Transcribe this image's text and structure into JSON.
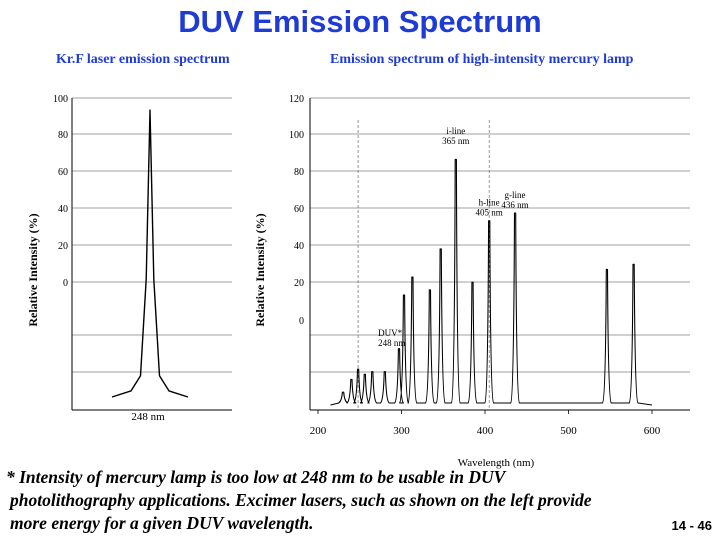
{
  "slide": {
    "title": "DUV Emission Spectrum",
    "left_subtitle": "Kr.F laser emission spectrum",
    "right_subtitle": "Emission spectrum of high-intensity mercury lamp",
    "footnote_lines": [
      "* Intensity of mercury lamp is too low at 248 nm to be usable in DUV",
      "photolithography applications. Excimer lasers, such as shown on the left provide",
      "more energy for a given DUV wavelength."
    ],
    "page_number": "14 - 46",
    "colors": {
      "title": "#1f3bd6",
      "text": "#000000",
      "dashed": "#555555"
    }
  },
  "chart_data": [
    {
      "type": "line",
      "title": "Kr.F laser emission spectrum",
      "ylabel": "Relative Intensity (%)",
      "ytick_labels": [
        "100",
        "80",
        "60",
        "40",
        "20",
        "0"
      ],
      "xtick_labels": [
        "248 nm"
      ],
      "ylim": [
        0,
        100
      ],
      "grid": true,
      "series": [
        {
          "x": [
            246.0,
            247.0,
            247.5,
            247.8,
            248.0,
            248.2,
            248.5,
            249.0,
            250.0
          ],
          "y": [
            1,
            3,
            8,
            40,
            96,
            40,
            8,
            3,
            1
          ]
        }
      ]
    },
    {
      "type": "line",
      "title": "Emission spectrum of high-intensity mercury lamp",
      "ylabel": "Relative Intensity (%)",
      "xlabel": "Wavelength (nm)",
      "ytick_labels": [
        "120",
        "100",
        "80",
        "60",
        "40",
        "20",
        "0"
      ],
      "xtick_labels": [
        "200",
        "300",
        "400",
        "500",
        "600"
      ],
      "xlim": [
        200,
        600
      ],
      "ylim": [
        0,
        120
      ],
      "grid": true,
      "annotations": [
        {
          "text": [
            "i-line",
            "365 nm"
          ],
          "x": 365,
          "y": 106
        },
        {
          "text": [
            "h-line",
            "405 nm"
          ],
          "x": 405,
          "y": 78
        },
        {
          "text": [
            "g-line",
            "436 nm"
          ],
          "x": 436,
          "y": 81
        },
        {
          "text": [
            "DUV*",
            "248 nm"
          ],
          "x": 248,
          "y": 27
        }
      ],
      "peaks": [
        {
          "x": 230,
          "y": 5
        },
        {
          "x": 240,
          "y": 10
        },
        {
          "x": 248,
          "y": 14
        },
        {
          "x": 256,
          "y": 12
        },
        {
          "x": 265,
          "y": 13
        },
        {
          "x": 280,
          "y": 13
        },
        {
          "x": 297,
          "y": 22
        },
        {
          "x": 303,
          "y": 43
        },
        {
          "x": 313,
          "y": 50
        },
        {
          "x": 334,
          "y": 45
        },
        {
          "x": 347,
          "y": 61
        },
        {
          "x": 365,
          "y": 96
        },
        {
          "x": 385,
          "y": 48
        },
        {
          "x": 405,
          "y": 72
        },
        {
          "x": 436,
          "y": 75
        },
        {
          "x": 546,
          "y": 53
        },
        {
          "x": 578,
          "y": 55
        }
      ]
    }
  ]
}
